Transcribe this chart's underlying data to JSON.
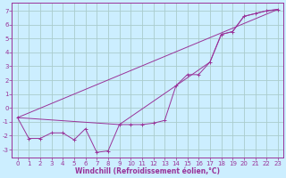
{
  "xlabel": "Windchill (Refroidissement éolien,°C)",
  "bg_color": "#cceeff",
  "line_color": "#993399",
  "grid_color": "#aacccc",
  "ylim": [
    -3.6,
    7.6
  ],
  "xlim": [
    -0.5,
    23.5
  ],
  "yticks": [
    -3,
    -2,
    -1,
    0,
    1,
    2,
    3,
    4,
    5,
    6,
    7
  ],
  "xticks": [
    0,
    1,
    2,
    3,
    4,
    5,
    6,
    7,
    8,
    9,
    10,
    11,
    12,
    13,
    14,
    15,
    16,
    17,
    18,
    19,
    20,
    21,
    22,
    23
  ],
  "line1_x": [
    0,
    1,
    2,
    3,
    4,
    5,
    6,
    7,
    8,
    9,
    10,
    11,
    12,
    13,
    14,
    15,
    16,
    17,
    18,
    19,
    20,
    21,
    22,
    23
  ],
  "line1_y": [
    -0.7,
    -2.2,
    -2.2,
    -1.8,
    -1.8,
    -2.3,
    -1.5,
    -3.2,
    -3.1,
    -1.2,
    -1.2,
    -1.2,
    -1.1,
    -0.9,
    1.6,
    2.4,
    2.4,
    3.3,
    5.3,
    5.5,
    6.6,
    6.8,
    7.0,
    7.1
  ],
  "line2_x": [
    0,
    9,
    14,
    17,
    18,
    19,
    20,
    21,
    22,
    23
  ],
  "line2_y": [
    -0.7,
    -1.2,
    1.6,
    3.3,
    5.3,
    5.5,
    6.6,
    6.8,
    7.0,
    7.1
  ],
  "line3_x": [
    0,
    23
  ],
  "line3_y": [
    -0.7,
    7.1
  ],
  "xlabel_fontsize": 5.5,
  "tick_fontsize": 5.0
}
